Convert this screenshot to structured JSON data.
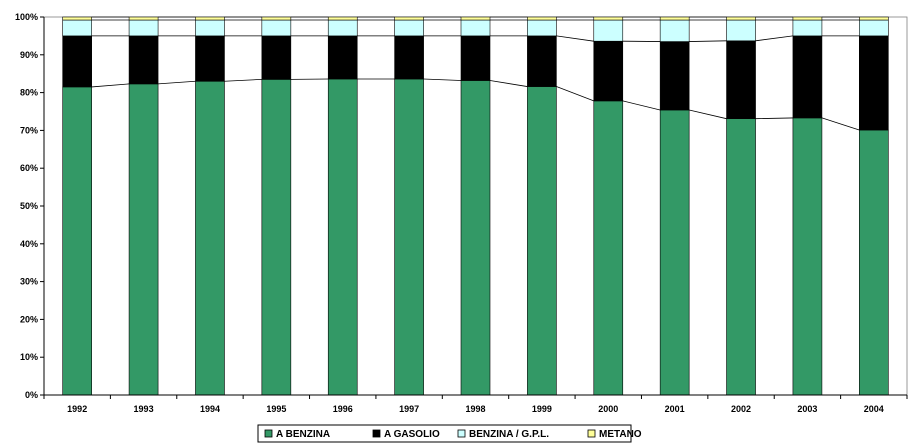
{
  "chart_data": {
    "type": "bar",
    "stacked": true,
    "percent": true,
    "categories": [
      "1992",
      "1993",
      "1994",
      "1995",
      "1996",
      "1997",
      "1998",
      "1999",
      "2000",
      "2001",
      "2002",
      "2003",
      "2004"
    ],
    "series": [
      {
        "name": "A BENZINA",
        "color": "#339966",
        "values": [
          81.5,
          82.3,
          83.0,
          83.5,
          83.6,
          83.6,
          83.2,
          81.6,
          77.8,
          75.4,
          73.1,
          73.3,
          70.1
        ]
      },
      {
        "name": "A GASOLIO",
        "color": "#000000",
        "values": [
          13.5,
          12.7,
          12.0,
          11.5,
          11.4,
          11.4,
          11.8,
          13.4,
          15.8,
          18.1,
          20.6,
          21.7,
          24.9
        ]
      },
      {
        "name": "BENZINA / G.P.L.",
        "color": "#CCFFFF",
        "values": [
          4.2,
          4.2,
          4.2,
          4.2,
          4.2,
          4.2,
          4.2,
          4.2,
          5.6,
          5.7,
          5.5,
          4.2,
          4.2
        ]
      },
      {
        "name": "METANO",
        "color": "#FFFF99",
        "values": [
          0.8,
          0.8,
          0.8,
          0.8,
          0.8,
          0.8,
          0.8,
          0.8,
          0.8,
          0.8,
          0.8,
          0.8,
          0.8
        ]
      }
    ],
    "ylim": [
      0,
      100
    ],
    "yticks": [
      0,
      10,
      20,
      30,
      40,
      50,
      60,
      70,
      80,
      90,
      100
    ],
    "ytick_labels": [
      "0%",
      "10%",
      "20%",
      "30%",
      "40%",
      "50%",
      "60%",
      "70%",
      "80%",
      "90%",
      "100%"
    ],
    "series_lines": true,
    "grid": false,
    "legend_position": "bottom"
  }
}
